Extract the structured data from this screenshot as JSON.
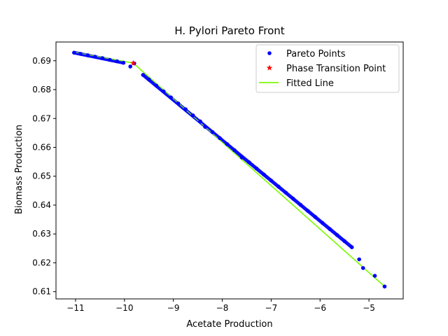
{
  "chart_data": {
    "type": "scatter",
    "title": "H. Pylori Pareto Front",
    "xlabel": "Acetate Production",
    "ylabel": "Biomass Production",
    "xlim": [
      -11.4,
      -4.3
    ],
    "ylim": [
      0.6075,
      0.6965
    ],
    "xticks": [
      -11,
      -10,
      -9,
      -8,
      -7,
      -6,
      -5
    ],
    "xtick_labels": [
      "−11",
      "−10",
      "−9",
      "−8",
      "−7",
      "−6",
      "−5"
    ],
    "yticks": [
      0.61,
      0.62,
      0.63,
      0.64,
      0.65,
      0.66,
      0.67,
      0.68,
      0.69
    ],
    "ytick_labels": [
      "0.61",
      "0.62",
      "0.63",
      "0.64",
      "0.65",
      "0.66",
      "0.67",
      "0.68",
      "0.69"
    ],
    "grid": false,
    "legend_position": "top-right",
    "legend": [
      {
        "label": "Pareto Points",
        "marker": "dot",
        "color": "#0000ff"
      },
      {
        "label": "Phase Transition Point",
        "marker": "star",
        "color": "#ff0000"
      },
      {
        "label": "Fitted Line",
        "marker": "line",
        "color": "#7cfc00"
      }
    ],
    "series": [
      {
        "name": "Pareto Points",
        "color": "#0000ff",
        "points": [
          [
            -11.03,
            0.6928
          ],
          [
            -10.9,
            0.6924
          ],
          [
            -10.75,
            0.6919
          ],
          [
            -10.6,
            0.6914
          ],
          [
            -10.45,
            0.6909
          ],
          [
            -10.3,
            0.6903
          ],
          [
            -10.15,
            0.6898
          ],
          [
            -10.02,
            0.6893
          ],
          [
            -9.88,
            0.688
          ],
          [
            -9.8,
            0.6891
          ],
          [
            -9.62,
            0.6851
          ],
          [
            -9.5,
            0.6835
          ],
          [
            -9.35,
            0.6814
          ],
          [
            -9.2,
            0.6794
          ],
          [
            -9.05,
            0.6773
          ],
          [
            -8.9,
            0.6752
          ],
          [
            -8.75,
            0.6732
          ],
          [
            -8.6,
            0.6711
          ],
          [
            -8.45,
            0.669
          ],
          [
            -8.35,
            0.6671
          ],
          [
            -8.2,
            0.6653
          ],
          [
            -8.05,
            0.6632
          ],
          [
            -7.9,
            0.6611
          ],
          [
            -7.75,
            0.659
          ],
          [
            -7.6,
            0.6565
          ],
          [
            -7.45,
            0.6548
          ],
          [
            -7.3,
            0.6527
          ],
          [
            -7.15,
            0.6506
          ],
          [
            -7.0,
            0.6485
          ],
          [
            -6.85,
            0.6464
          ],
          [
            -6.7,
            0.6443
          ],
          [
            -6.55,
            0.6422
          ],
          [
            -6.4,
            0.6401
          ],
          [
            -6.25,
            0.638
          ],
          [
            -6.1,
            0.6359
          ],
          [
            -5.95,
            0.6338
          ],
          [
            -5.8,
            0.6317
          ],
          [
            -5.65,
            0.6296
          ],
          [
            -5.5,
            0.6275
          ],
          [
            -5.35,
            0.6254
          ],
          [
            -5.2,
            0.6212
          ],
          [
            -5.12,
            0.6182
          ],
          [
            -4.88,
            0.6155
          ],
          [
            -4.68,
            0.6118
          ]
        ]
      },
      {
        "name": "Phase Transition Point",
        "color": "#ff0000",
        "points": [
          [
            -9.82,
            0.6892
          ]
        ]
      },
      {
        "name": "Fitted Line",
        "color": "#7cfc00",
        "segments": [
          [
            [
              -11.03,
              0.693
            ],
            [
              -9.82,
              0.6892
            ]
          ],
          [
            [
              -9.82,
              0.6892
            ],
            [
              -4.68,
              0.6118
            ]
          ]
        ]
      }
    ]
  }
}
